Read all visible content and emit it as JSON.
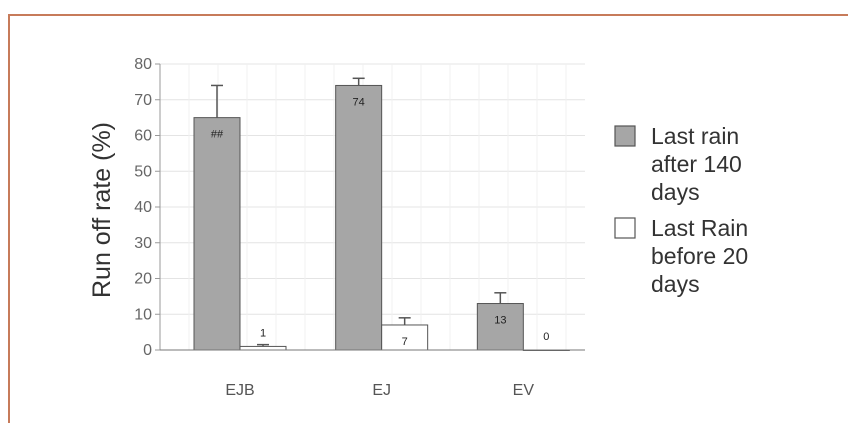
{
  "chart_data": {
    "type": "bar",
    "ylabel": "Run off rate (%)",
    "ylim": [
      0,
      80
    ],
    "yticks": [
      0,
      10,
      20,
      30,
      40,
      50,
      60,
      70,
      80
    ],
    "categories": [
      "EJB",
      "EJ",
      "EV"
    ],
    "series": [
      {
        "name": "Last rain after 140 days",
        "legend_lines": [
          "Last rain",
          "after 140",
          "days"
        ],
        "color": "#a6a6a6",
        "values": [
          65,
          74,
          13
        ],
        "errors": [
          9,
          2,
          3
        ],
        "data_labels": [
          "##",
          "74",
          "13"
        ]
      },
      {
        "name": "Last Rain before 20 days",
        "legend_lines": [
          "Last Rain",
          "before 20",
          "days"
        ],
        "color": "#ffffff",
        "values": [
          1,
          7,
          0
        ],
        "errors": [
          0.5,
          2,
          0
        ],
        "data_labels": [
          "1",
          "7",
          "0"
        ]
      }
    ],
    "grid": true,
    "legend_position": "right"
  }
}
